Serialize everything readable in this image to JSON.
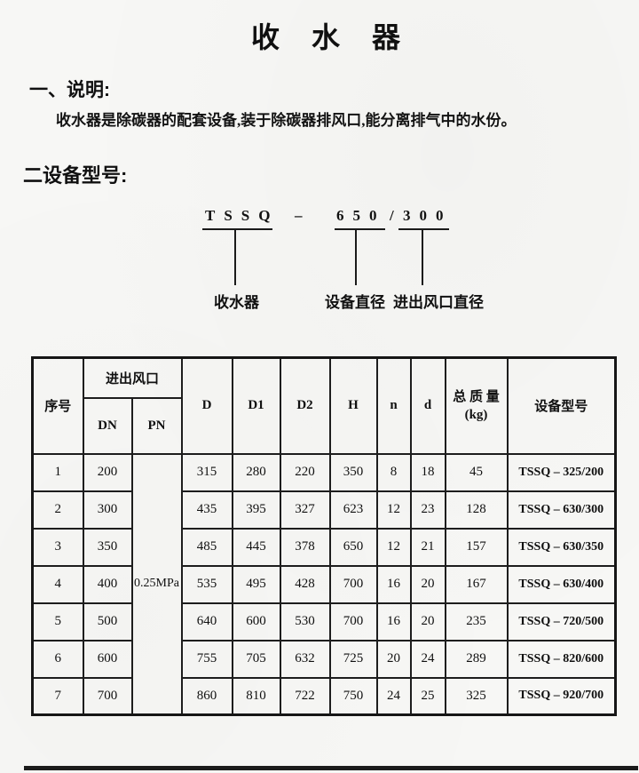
{
  "page": {
    "title": "收水器",
    "section1": {
      "heading": "一、说明:",
      "body": "收水器是除碳器的配套设备,装于除碳器排风口,能分离排气中的水份。"
    },
    "section2": {
      "heading": "二设备型号:"
    },
    "model_diagram": {
      "code_prefix": "TSSQ",
      "dash": "–",
      "diameter": "650",
      "slash": "/",
      "port": "300",
      "labels": [
        "收水器",
        "设备直径",
        "进出风口直径"
      ]
    },
    "table": {
      "header": {
        "serial": "序号",
        "inlet_outlet": "进出风口",
        "dn": "DN",
        "pn": "PN",
        "cols": [
          "D",
          "D1",
          "D2",
          "H",
          "n",
          "d"
        ],
        "mass_line1": "总 质 量",
        "mass_line2": "(kg)",
        "model": "设备型号"
      },
      "pn_value": "0.25MPa",
      "rows": [
        [
          "1",
          "200",
          "315",
          "280",
          "220",
          "350",
          "8",
          "18",
          "45",
          "TSSQ – 325/200"
        ],
        [
          "2",
          "300",
          "435",
          "395",
          "327",
          "623",
          "12",
          "23",
          "128",
          "TSSQ – 630/300"
        ],
        [
          "3",
          "350",
          "485",
          "445",
          "378",
          "650",
          "12",
          "21",
          "157",
          "TSSQ – 630/350"
        ],
        [
          "4",
          "400",
          "535",
          "495",
          "428",
          "700",
          "16",
          "20",
          "167",
          "TSSQ – 630/400"
        ],
        [
          "5",
          "500",
          "640",
          "600",
          "530",
          "700",
          "16",
          "20",
          "235",
          "TSSQ – 720/500"
        ],
        [
          "6",
          "600",
          "755",
          "705",
          "632",
          "725",
          "20",
          "24",
          "289",
          "TSSQ – 820/600"
        ],
        [
          "7",
          "700",
          "860",
          "810",
          "722",
          "750",
          "24",
          "25",
          "325",
          "TSSQ – 920/700"
        ]
      ]
    }
  }
}
